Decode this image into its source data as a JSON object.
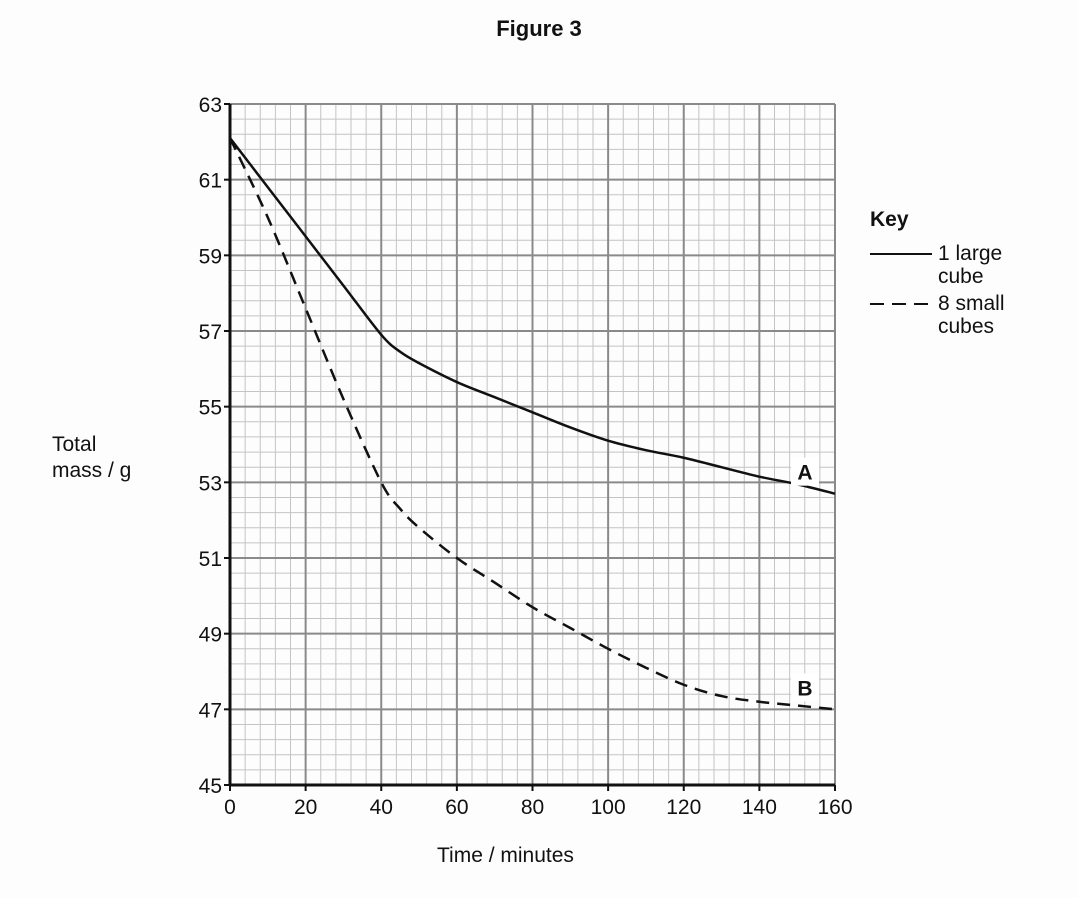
{
  "figure": {
    "title": "Figure 3"
  },
  "chart_data": {
    "type": "line",
    "title": "Figure 3",
    "xlabel": "Time / minutes",
    "ylabel": "Total mass / g",
    "xlim": [
      0,
      160
    ],
    "ylim": [
      45,
      63
    ],
    "x_ticks": [
      0,
      20,
      40,
      60,
      80,
      100,
      120,
      140,
      160
    ],
    "y_ticks": [
      45,
      47,
      49,
      51,
      53,
      55,
      57,
      59,
      61,
      63
    ],
    "grid": {
      "on": true,
      "major_x": 20,
      "major_y": 2,
      "minor_x": 4,
      "minor_y": 0.4
    },
    "legend": {
      "title": "Key",
      "position": "right",
      "entries": [
        {
          "style": "solid",
          "label_line1": "1 large",
          "label_line2": "cube"
        },
        {
          "style": "dashed",
          "label_line1": "8 small",
          "label_line2": "cubes"
        }
      ]
    },
    "series": [
      {
        "name": "1 large cube",
        "curve_label": "A",
        "style": "solid",
        "x": [
          0,
          10,
          20,
          30,
          40,
          45,
          50,
          60,
          70,
          80,
          90,
          100,
          110,
          120,
          130,
          140,
          150,
          160
        ],
        "values": [
          62.1,
          60.8,
          59.5,
          58.2,
          56.9,
          56.45,
          56.15,
          55.65,
          55.25,
          54.85,
          54.45,
          54.1,
          53.85,
          53.65,
          53.4,
          53.15,
          52.95,
          52.7
        ]
      },
      {
        "name": "8 small cubes",
        "curve_label": "B",
        "style": "dashed",
        "x": [
          0,
          10,
          20,
          30,
          40,
          45,
          50,
          60,
          70,
          80,
          90,
          100,
          110,
          120,
          130,
          140,
          150,
          160
        ],
        "values": [
          62.1,
          60.0,
          57.6,
          55.2,
          53.0,
          52.3,
          51.8,
          51.0,
          50.35,
          49.7,
          49.15,
          48.6,
          48.1,
          47.65,
          47.35,
          47.2,
          47.1,
          47.0
        ]
      }
    ]
  }
}
